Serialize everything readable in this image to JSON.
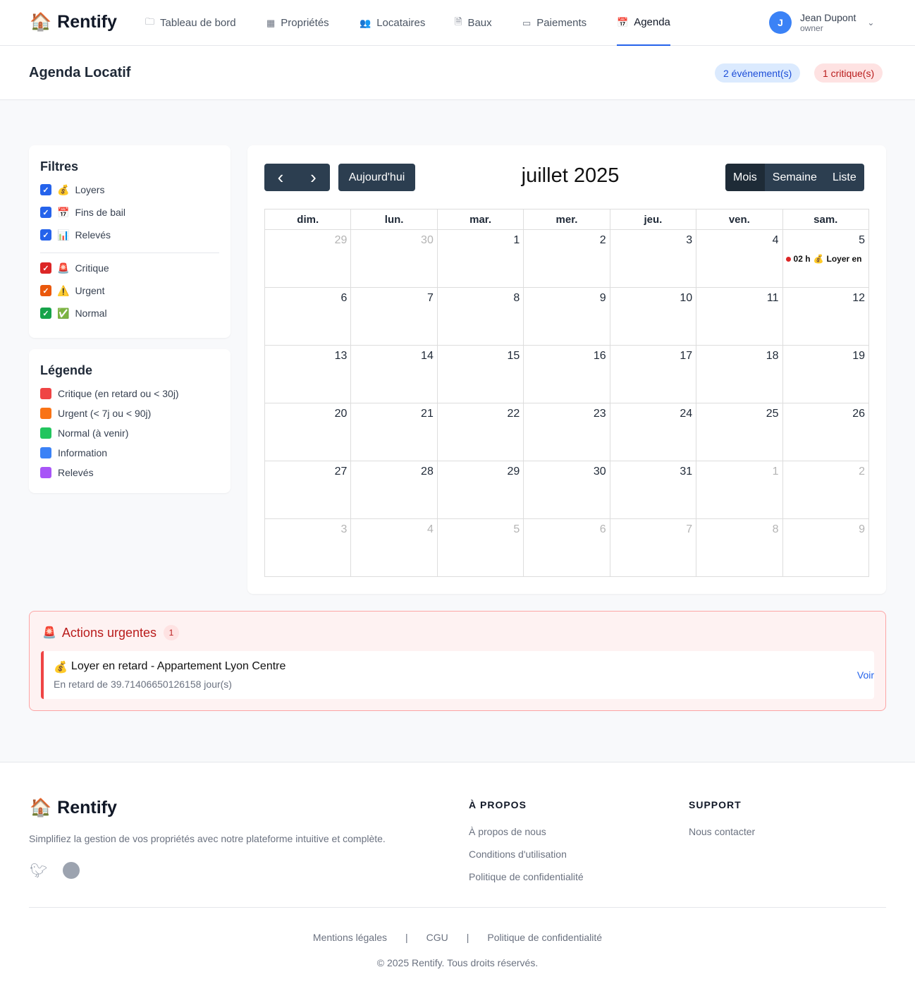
{
  "app": {
    "name": "Rentify",
    "logo_icon": "🏠"
  },
  "nav": [
    {
      "label": "Tableau de bord",
      "icon": "🗀"
    },
    {
      "label": "Propriétés",
      "icon": "▦"
    },
    {
      "label": "Locataires",
      "icon": "👥"
    },
    {
      "label": "Baux",
      "icon": "🗎"
    },
    {
      "label": "Paiements",
      "icon": "▭"
    },
    {
      "label": "Agenda",
      "icon": "📅",
      "active": true
    }
  ],
  "user": {
    "initial": "J",
    "name": "Jean Dupont",
    "role": "owner"
  },
  "page": {
    "title": "Agenda Locatif",
    "events_badge": "2 événement(s)",
    "critical_badge": "1 critique(s)"
  },
  "filters": {
    "title": "Filtres",
    "types": [
      {
        "icon": "💰",
        "label": "Loyers",
        "color": "#2563eb"
      },
      {
        "icon": "📅",
        "label": "Fins de bail",
        "color": "#2563eb"
      },
      {
        "icon": "📊",
        "label": "Relevés",
        "color": "#2563eb"
      }
    ],
    "priorities": [
      {
        "icon": "🚨",
        "label": "Critique",
        "color": "#dc2626"
      },
      {
        "icon": "⚠️",
        "label": "Urgent",
        "color": "#ea580c"
      },
      {
        "icon": "✅",
        "label": "Normal",
        "color": "#16a34a"
      }
    ]
  },
  "legend": {
    "title": "Légende",
    "items": [
      {
        "label": "Critique (en retard ou < 30j)",
        "color": "#ef4444"
      },
      {
        "label": "Urgent (< 7j ou < 90j)",
        "color": "#f97316"
      },
      {
        "label": "Normal (à venir)",
        "color": "#22c55e"
      },
      {
        "label": "Information",
        "color": "#3b82f6"
      },
      {
        "label": "Relevés",
        "color": "#a855f7"
      }
    ]
  },
  "calendar": {
    "prev": "‹",
    "next": "›",
    "today": "Aujourd'hui",
    "title": "juillet 2025",
    "views": [
      {
        "label": "Mois",
        "active": true
      },
      {
        "label": "Semaine"
      },
      {
        "label": "Liste"
      }
    ],
    "weekdays": [
      "dim.",
      "lun.",
      "mar.",
      "mer.",
      "jeu.",
      "ven.",
      "sam."
    ],
    "weeks": [
      [
        {
          "d": "29",
          "o": true
        },
        {
          "d": "30",
          "o": true
        },
        {
          "d": "1"
        },
        {
          "d": "2"
        },
        {
          "d": "3"
        },
        {
          "d": "4"
        },
        {
          "d": "5",
          "events": [
            {
              "time": "02 h",
              "icon": "💰",
              "title": "Loyer en"
            }
          ]
        }
      ],
      [
        {
          "d": "6"
        },
        {
          "d": "7"
        },
        {
          "d": "8"
        },
        {
          "d": "9"
        },
        {
          "d": "10"
        },
        {
          "d": "11"
        },
        {
          "d": "12"
        }
      ],
      [
        {
          "d": "13"
        },
        {
          "d": "14"
        },
        {
          "d": "15"
        },
        {
          "d": "16"
        },
        {
          "d": "17"
        },
        {
          "d": "18"
        },
        {
          "d": "19"
        }
      ],
      [
        {
          "d": "20"
        },
        {
          "d": "21"
        },
        {
          "d": "22"
        },
        {
          "d": "23"
        },
        {
          "d": "24"
        },
        {
          "d": "25"
        },
        {
          "d": "26"
        }
      ],
      [
        {
          "d": "27"
        },
        {
          "d": "28"
        },
        {
          "d": "29"
        },
        {
          "d": "30"
        },
        {
          "d": "31"
        },
        {
          "d": "1",
          "o": true
        },
        {
          "d": "2",
          "o": true
        }
      ],
      [
        {
          "d": "3",
          "o": true
        },
        {
          "d": "4",
          "o": true
        },
        {
          "d": "5",
          "o": true
        },
        {
          "d": "6",
          "o": true
        },
        {
          "d": "7",
          "o": true
        },
        {
          "d": "8",
          "o": true
        },
        {
          "d": "9",
          "o": true
        }
      ]
    ]
  },
  "urgent": {
    "icon": "🚨",
    "title": "Actions urgentes",
    "count": "1",
    "item": {
      "icon": "💰",
      "title": "Loyer en retard - Appartement Lyon Centre",
      "subtitle": "En retard de 39.71406650126158 jour(s)",
      "action": "Voir"
    }
  },
  "footer": {
    "tagline": "Simplifiez la gestion de vos propriétés avec notre plateforme intuitive et complète.",
    "about_title": "À PROPOS",
    "about_links": [
      "À propos de nous",
      "Conditions d'utilisation",
      "Politique de confidentialité"
    ],
    "support_title": "SUPPORT",
    "support_links": [
      "Nous contacter"
    ],
    "bottom_links": [
      "Mentions légales",
      "CGU",
      "Politique de confidentialité"
    ],
    "copyright": "© 2025 Rentify. Tous droits réservés."
  }
}
